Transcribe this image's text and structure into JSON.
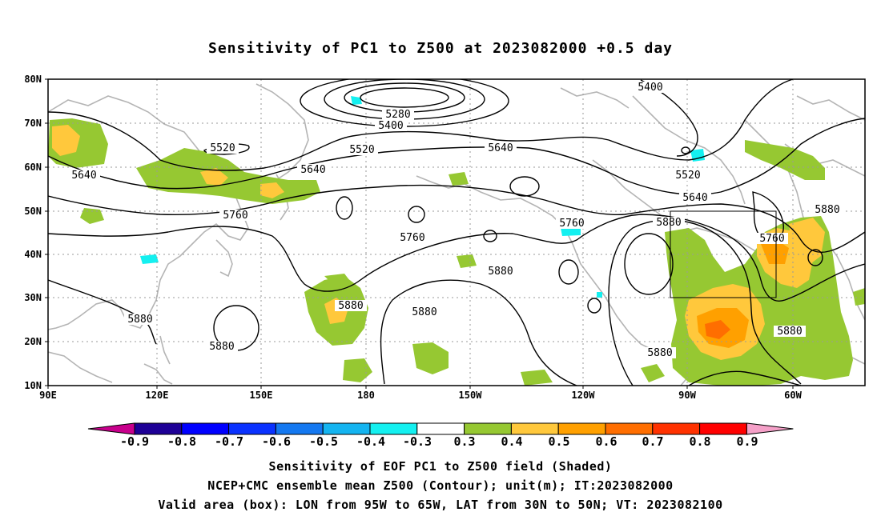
{
  "title": "Sensitivity of PC1 to Z500 at 2023082000 +0.5 day",
  "map": {
    "lat_labels": [
      "80N",
      "70N",
      "60N",
      "50N",
      "40N",
      "30N",
      "20N",
      "10N"
    ],
    "lon_labels": [
      "90E",
      "120E",
      "150E",
      "180",
      "150W",
      "120W",
      "90W",
      "60W"
    ],
    "valid_box": {
      "lon_from": "95W",
      "lon_to": "65W",
      "lat_from": "30N",
      "lat_to": "50N"
    }
  },
  "contours": {
    "labels": [
      "5400",
      "5280",
      "5400",
      "5520",
      "5520",
      "5640",
      "5640",
      "5640",
      "5520",
      "5640",
      "5760",
      "5760",
      "5760",
      "5880",
      "5760",
      "5880",
      "5880",
      "5880",
      "5880",
      "5880",
      "5880",
      "5880",
      "5880"
    ]
  },
  "colorbar": {
    "labels": [
      "-0.9",
      "-0.8",
      "-0.7",
      "-0.6",
      "-0.5",
      "-0.4",
      "-0.3",
      "0.3",
      "0.4",
      "0.5",
      "0.6",
      "0.7",
      "0.8",
      "0.9"
    ],
    "colors": [
      "#1e0096",
      "#0000ff",
      "#0a32ff",
      "#1478f0",
      "#14b4f0",
      "#14f0f0",
      "#ffffff",
      "#96c832",
      "#ffc83c",
      "#ffa000",
      "#ff6e00",
      "#ff3200",
      "#ff0000"
    ],
    "low_arrow_color": "#c8008c",
    "high_arrow_color": "#f5a0c8"
  },
  "captions": {
    "line1": "Sensitivity of EOF PC1 to Z500 field (Shaded)",
    "line2": "NCEP+CMC ensemble mean Z500 (Contour); unit(m); IT:2023082000",
    "line3": "Valid area (box): LON from 95W to 65W, LAT from 30N to 50N; VT: 2023082100"
  }
}
